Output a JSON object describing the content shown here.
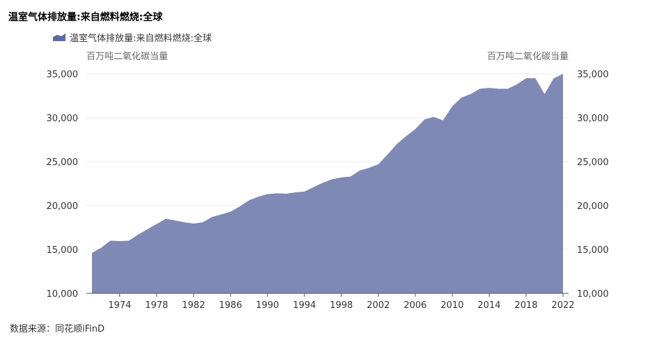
{
  "title": "温室气体排放量:来自燃料燃烧:全球",
  "source": "数据来源：同花顺iFinD",
  "chart_data": {
    "type": "area",
    "series": [
      {
        "name": "温室气体排放量:来自燃料燃烧:全球",
        "color": "#7f89b5",
        "x": [
          1971,
          1972,
          1973,
          1974,
          1975,
          1976,
          1977,
          1978,
          1979,
          1980,
          1981,
          1982,
          1983,
          1984,
          1985,
          1986,
          1987,
          1988,
          1989,
          1990,
          1991,
          1992,
          1993,
          1994,
          1995,
          1996,
          1997,
          1998,
          1999,
          2000,
          2001,
          2002,
          2003,
          2004,
          2005,
          2006,
          2007,
          2008,
          2009,
          2010,
          2011,
          2012,
          2013,
          2014,
          2015,
          2016,
          2017,
          2018,
          2019,
          2020,
          2021,
          2022
        ],
        "values": [
          14600,
          15200,
          16000,
          15950,
          16000,
          16700,
          17300,
          17900,
          18500,
          18300,
          18100,
          17950,
          18100,
          18700,
          19000,
          19300,
          19900,
          20600,
          21000,
          21300,
          21400,
          21350,
          21500,
          21600,
          22100,
          22600,
          23000,
          23200,
          23300,
          24000,
          24300,
          24700,
          25800,
          27000,
          27900,
          28700,
          29800,
          30100,
          29700,
          31300,
          32300,
          32700,
          33300,
          33400,
          33300,
          33300,
          33800,
          34500,
          34500,
          32700,
          34500,
          35000
        ]
      }
    ],
    "ylabel_left": "百万吨二氧化碳当量",
    "ylabel_right": "百万吨二氧化碳当量",
    "ylim": [
      10000,
      35000
    ],
    "yticks": [
      "10,000",
      "15,000",
      "20,000",
      "25,000",
      "30,000",
      "35,000"
    ],
    "xticks": [
      "1974",
      "1978",
      "1982",
      "1986",
      "1990",
      "1994",
      "1998",
      "2002",
      "2006",
      "2010",
      "2014",
      "2018",
      "2022"
    ],
    "grid": true,
    "legend": "top-left"
  }
}
